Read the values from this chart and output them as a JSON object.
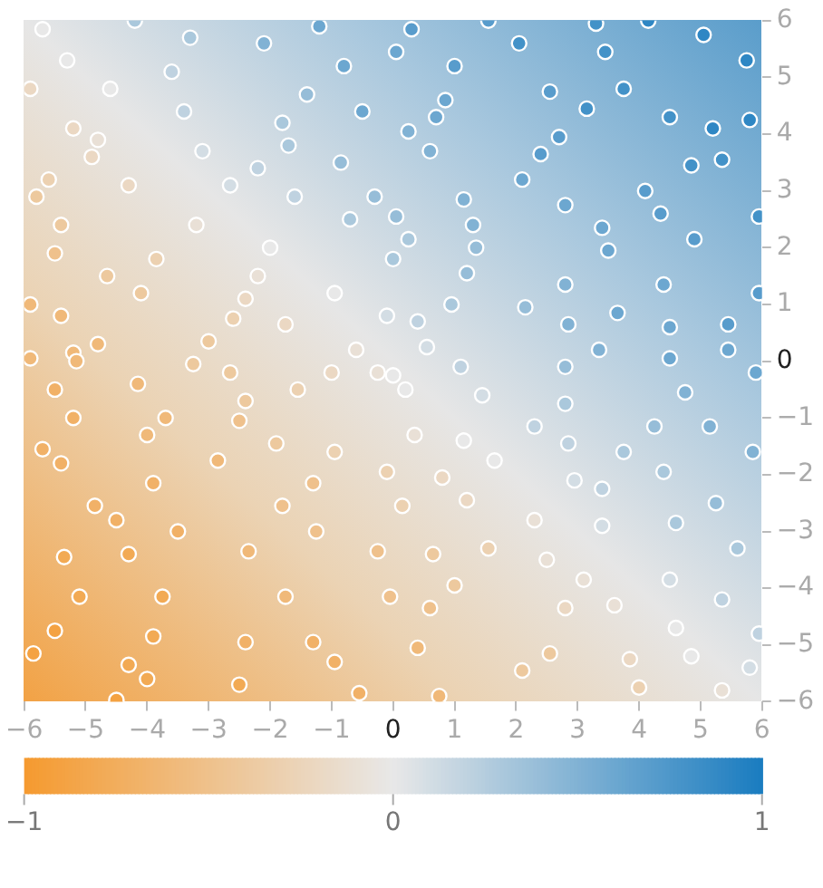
{
  "chart_data": {
    "type": "scatter",
    "xlim": [
      -6,
      6
    ],
    "ylim": [
      -6,
      6
    ],
    "xticks": [
      {
        "value": -6,
        "label": "−6"
      },
      {
        "value": -5,
        "label": "−5"
      },
      {
        "value": -4,
        "label": "−4"
      },
      {
        "value": -3,
        "label": "−3"
      },
      {
        "value": -2,
        "label": "−2"
      },
      {
        "value": -1,
        "label": "−1"
      },
      0,
      1,
      2,
      3,
      4,
      5,
      6
    ],
    "yticks": [
      {
        "value": -6,
        "label": "−6"
      },
      {
        "value": -5,
        "label": "−5"
      },
      {
        "value": -4,
        "label": "−4"
      },
      {
        "value": -3,
        "label": "−3"
      },
      {
        "value": -2,
        "label": "−2"
      },
      {
        "value": -1,
        "label": "−1"
      },
      0,
      1,
      2,
      3,
      4,
      5,
      6
    ],
    "grid": false,
    "legend": false,
    "marker": "circle",
    "clim": [
      -1,
      1
    ],
    "cticks": [
      {
        "value": -1,
        "label": "−1"
      },
      0,
      1
    ],
    "series": [
      {
        "type": "scatter",
        "x": [
          -5.7,
          -4.2,
          -3.3,
          -2.1,
          -1.2,
          -0.8,
          -5.3,
          -3.6,
          -1.4,
          -5.9,
          -4.6,
          -5.2,
          -3.4,
          -1.8,
          -0.5,
          -4.8,
          -3.1,
          -1.7,
          -4.9,
          -2.2,
          -0.85,
          -5.6,
          -5.8,
          -4.3,
          -2.65,
          -1.6,
          -0.3,
          -5.4,
          -3.2,
          -0.7,
          -5.5,
          -3.85,
          -2.0,
          0.0,
          -4.65,
          -2.2,
          -5.9,
          -4.1,
          -2.4,
          -0.95,
          -5.4,
          -2.6,
          -1.75,
          -0.1,
          -4.8,
          -3.0,
          -0.6,
          -5.2,
          0.3,
          1.55,
          2.05,
          3.3,
          4.15,
          5.05,
          5.75,
          3.45,
          0.05,
          1.0,
          2.55,
          3.75,
          0.85,
          3.15,
          4.5,
          5.8,
          0.7,
          5.2,
          0.25,
          2.7,
          0.6,
          2.4,
          5.35,
          4.85,
          2.1,
          4.1,
          1.15,
          2.8,
          0.05,
          1.3,
          3.4,
          4.35,
          5.95,
          0.25,
          4.9,
          1.35,
          3.5,
          1.2,
          2.8,
          4.4,
          5.95,
          0.95,
          2.15,
          3.65,
          0.4,
          2.85,
          4.5,
          5.45,
          0.55,
          3.35,
          5.45,
          -5.9,
          -5.15,
          -5.5,
          -4.15,
          -3.25,
          -2.65,
          -1.55,
          -0.25,
          -1.0,
          -2.4,
          -5.2,
          -3.7,
          -2.5,
          -4.0,
          -5.7,
          -1.9,
          -5.4,
          -2.85,
          -0.95,
          -0.1,
          -3.9,
          -1.3,
          -4.85,
          -1.8,
          -4.5,
          -3.5,
          -1.25,
          -5.35,
          -4.3,
          -2.35,
          -0.25,
          -5.1,
          -3.75,
          -1.75,
          -0.05,
          -5.5,
          -3.9,
          -2.4,
          -1.3,
          -5.85,
          -4.3,
          -0.95,
          -4.0,
          -2.5,
          -4.5,
          -0.55,
          0.0,
          1.1,
          2.8,
          4.5,
          5.9,
          0.2,
          1.45,
          2.8,
          4.75,
          0.35,
          1.15,
          2.3,
          2.85,
          4.25,
          5.15,
          5.85,
          1.65,
          2.95,
          0.8,
          3.75,
          4.4,
          5.25,
          3.4,
          4.6,
          5.6,
          0.15,
          1.2,
          2.3,
          3.4,
          0.65,
          1.55,
          1.0,
          2.5,
          3.1,
          4.5,
          5.35,
          0.6,
          2.8,
          3.6,
          4.6,
          5.95,
          0.4,
          2.55,
          3.85,
          4.85,
          5.8,
          2.1,
          4.0,
          0.75,
          5.35
        ],
        "values": [
          5.85,
          6.0,
          5.7,
          5.6,
          5.9,
          5.2,
          5.3,
          5.1,
          4.7,
          4.8,
          4.8,
          4.1,
          4.4,
          4.2,
          4.4,
          3.9,
          3.7,
          3.8,
          3.6,
          3.4,
          3.5,
          3.2,
          2.9,
          3.1,
          3.1,
          2.9,
          2.9,
          2.4,
          2.4,
          2.5,
          1.9,
          1.8,
          2.0,
          1.8,
          1.5,
          1.5,
          1.0,
          1.2,
          1.1,
          1.2,
          0.8,
          0.75,
          0.65,
          0.8,
          0.3,
          0.35,
          0.2,
          0.15,
          5.85,
          6.0,
          5.6,
          5.95,
          6.0,
          5.75,
          5.3,
          5.45,
          5.45,
          5.2,
          4.75,
          4.8,
          4.6,
          4.45,
          4.3,
          4.25,
          4.3,
          4.1,
          4.05,
          3.95,
          3.7,
          3.65,
          3.55,
          3.45,
          3.2,
          3.0,
          2.85,
          2.75,
          2.55,
          2.4,
          2.35,
          2.6,
          2.55,
          2.15,
          2.15,
          2.0,
          1.95,
          1.55,
          1.35,
          1.35,
          1.2,
          1.0,
          0.95,
          0.85,
          0.7,
          0.65,
          0.6,
          0.65,
          0.25,
          0.2,
          0.2,
          0.05,
          0.0,
          -0.5,
          -0.4,
          -0.05,
          -0.2,
          -0.5,
          -0.2,
          -0.2,
          -0.7,
          -1.0,
          -1.0,
          -1.05,
          -1.3,
          -1.55,
          -1.45,
          -1.8,
          -1.75,
          -1.6,
          -1.95,
          -2.15,
          -2.15,
          -2.55,
          -2.55,
          -2.8,
          -3.0,
          -3.0,
          -3.45,
          -3.4,
          -3.35,
          -3.35,
          -4.15,
          -4.15,
          -4.15,
          -4.15,
          -4.75,
          -4.85,
          -4.95,
          -4.95,
          -5.15,
          -5.35,
          -5.3,
          -5.6,
          -5.7,
          -5.97,
          -5.85,
          -0.25,
          -0.1,
          -0.1,
          0.05,
          -0.2,
          -0.5,
          -0.6,
          -0.75,
          -0.55,
          -1.3,
          -1.4,
          -1.15,
          -1.45,
          -1.15,
          -1.15,
          -1.6,
          -1.75,
          -2.1,
          -2.05,
          -1.6,
          -1.95,
          -2.5,
          -2.25,
          -2.85,
          -3.3,
          -2.55,
          -2.45,
          -2.8,
          -2.9,
          -3.4,
          -3.3,
          -3.95,
          -3.5,
          -3.85,
          -3.85,
          -4.2,
          -4.35,
          -4.35,
          -4.3,
          -4.7,
          -4.8,
          -5.05,
          -5.15,
          -5.25,
          -5.2,
          -5.4,
          -5.45,
          -5.75,
          -5.9,
          -5.8
        ],
        "cvalues": [
          0,
          0.3,
          0.3,
          0.5,
          0.6,
          0.6,
          0,
          0.2,
          0.4,
          -0.2,
          0,
          -0.2,
          0.2,
          0.3,
          0.6,
          -0.1,
          0.1,
          0.3,
          -0.2,
          0.2,
          0.4,
          -0.3,
          -0.4,
          -0.2,
          0.1,
          0.2,
          0.4,
          -0.4,
          -0.1,
          0.3,
          -0.5,
          -0.3,
          0,
          0.3,
          -0.4,
          -0.1,
          -0.6,
          -0.4,
          -0.2,
          0,
          -0.6,
          -0.3,
          -0.2,
          0.1,
          -0.6,
          -0.4,
          -0.1,
          -0.6,
          0.7,
          0.7,
          0.8,
          0.8,
          0.9,
          0.9,
          0.9,
          0.8,
          0.6,
          0.7,
          0.7,
          0.8,
          0.6,
          0.8,
          0.8,
          0.9,
          0.6,
          0.9,
          0.5,
          0.7,
          0.5,
          0.7,
          0.8,
          0.8,
          0.6,
          0.7,
          0.5,
          0.6,
          0.4,
          0.5,
          0.6,
          0.7,
          0.8,
          0.3,
          0.7,
          0.4,
          0.6,
          0.4,
          0.5,
          0.6,
          0.7,
          0.3,
          0.4,
          0.6,
          0.2,
          0.5,
          0.6,
          0.7,
          0.1,
          0.5,
          0.6,
          -0.6,
          -0.6,
          -0.7,
          -0.6,
          -0.4,
          -0.4,
          -0.3,
          -0.1,
          -0.2,
          -0.4,
          -0.7,
          -0.6,
          -0.5,
          -0.6,
          -0.7,
          -0.4,
          -0.7,
          -0.6,
          -0.3,
          -0.3,
          -0.7,
          -0.5,
          -0.7,
          -0.5,
          -0.7,
          -0.7,
          -0.5,
          -0.8,
          -0.8,
          -0.6,
          -0.5,
          -0.8,
          -0.8,
          -0.6,
          -0.5,
          -0.9,
          -0.8,
          -0.7,
          -0.7,
          -0.9,
          -0.8,
          -0.7,
          -0.8,
          -0.8,
          -0.9,
          -0.7,
          0,
          0.2,
          0.4,
          0.6,
          0.6,
          0,
          0.1,
          0.3,
          0.5,
          -0.1,
          0,
          0.2,
          0.2,
          0.4,
          0.5,
          0.5,
          0,
          0.1,
          -0.2,
          0.3,
          0.3,
          0.4,
          0.2,
          0.3,
          0.3,
          -0.3,
          -0.2,
          -0.1,
          0.1,
          -0.4,
          -0.3,
          -0.4,
          -0.1,
          -0.1,
          0.1,
          0.2,
          -0.5,
          -0.2,
          -0.1,
          0,
          0.2,
          -0.6,
          -0.4,
          -0.2,
          0,
          0.1,
          -0.4,
          -0.3,
          -0.6,
          -0.1
        ]
      }
    ]
  }
}
